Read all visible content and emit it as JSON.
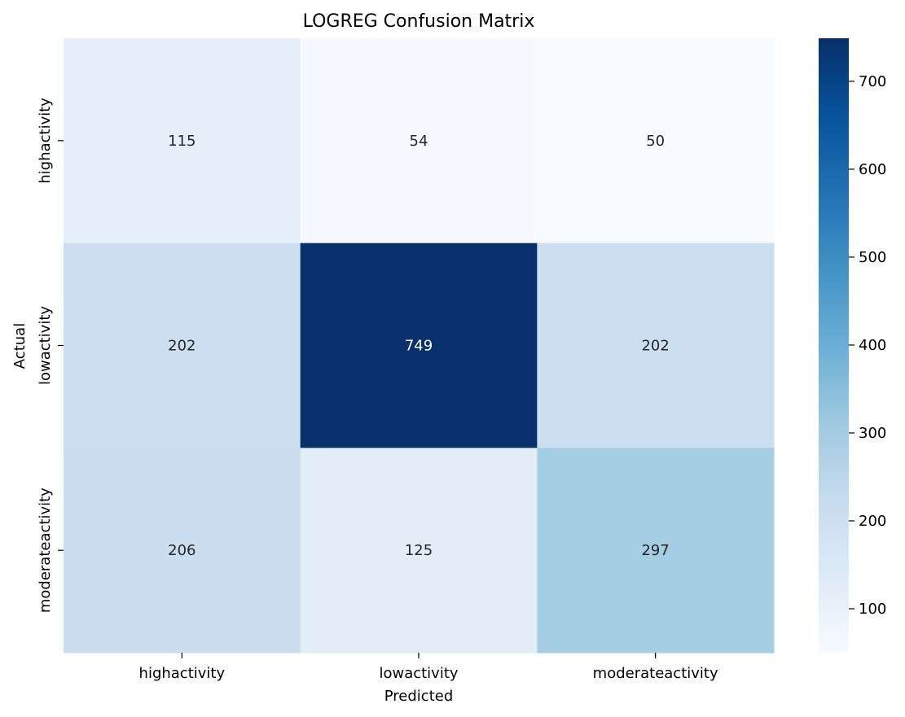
{
  "chart_data": {
    "type": "heatmap",
    "title": "LOGREG Confusion Matrix",
    "xlabel": "Predicted",
    "ylabel": "Actual",
    "x_categories": [
      "highactivity",
      "lowactivity",
      "moderateactivity"
    ],
    "y_categories": [
      "highactivity",
      "lowactivity",
      "moderateactivity"
    ],
    "values": [
      [
        115,
        54,
        50
      ],
      [
        202,
        749,
        202
      ],
      [
        206,
        125,
        297
      ]
    ],
    "colormap": "Blues",
    "color_range": [
      50,
      749
    ],
    "colorbar_ticks": [
      100,
      200,
      300,
      400,
      500,
      600,
      700
    ],
    "colors": {
      "low": "#f7fbff",
      "high": "#08306b",
      "dark_text": "#262626",
      "light_text": "#ffffff"
    }
  }
}
